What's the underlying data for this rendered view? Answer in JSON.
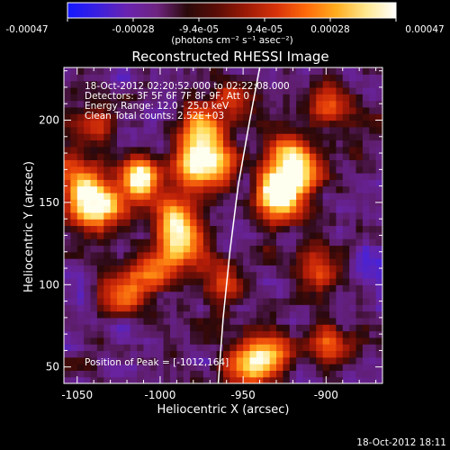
{
  "colorbar": {
    "colors": [
      "#1418ff",
      "#3a1fe0",
      "#6a23b0",
      "#6e2480",
      "#2a0a0a",
      "#5a0d06",
      "#9c1a06",
      "#d8330a",
      "#ff6a0a",
      "#ffad1e",
      "#ffe890",
      "#ffffff"
    ],
    "tick_labels": [
      "-0.00047",
      "-0.00028",
      "-9.4e-05",
      "9.4e-05",
      "0.00028",
      "0.00047"
    ],
    "unit_label": "(photons cm⁻² s⁻¹ asec⁻²)"
  },
  "chart_data": {
    "type": "heatmap",
    "title": "Reconstructed RHESSI Image",
    "xlabel": "Heliocentric X (arcsec)",
    "ylabel": "Heliocentric Y (arcsec)",
    "xlim": [
      -1058,
      -866
    ],
    "ylim": [
      40,
      232
    ],
    "x_ticks": [
      -1050,
      -1000,
      -950,
      -900
    ],
    "y_ticks": [
      50,
      100,
      150,
      200
    ],
    "info_lines": [
      "18-Oct-2012 02:20:52.000 to 02:22:08.000",
      "Detectors: 3F 5F 6F 7F 8F 9F, Att 0",
      "Energy Range: 12.0 - 25.0 keV",
      "Clean     Total counts: 2.52E+03"
    ],
    "peak_label": "Position of Peak = [-1012,164]",
    "peak": [
      -1012,
      164
    ],
    "limb": [
      [
        -965,
        40
      ],
      [
        -962,
        80
      ],
      [
        -958,
        120
      ],
      [
        -953,
        160
      ],
      [
        -946,
        200
      ],
      [
        -940,
        232
      ]
    ],
    "sources": [
      {
        "x": -1012,
        "y": 164,
        "amp": 1.0
      },
      {
        "x": -1035,
        "y": 148,
        "amp": 0.75
      },
      {
        "x": -1045,
        "y": 150,
        "amp": 0.6
      },
      {
        "x": -1050,
        "y": 165,
        "amp": 0.55
      },
      {
        "x": -990,
        "y": 140,
        "amp": 0.8
      },
      {
        "x": -985,
        "y": 122,
        "amp": 0.7
      },
      {
        "x": -1003,
        "y": 110,
        "amp": 0.65
      },
      {
        "x": -1022,
        "y": 95,
        "amp": 0.55
      },
      {
        "x": -980,
        "y": 170,
        "amp": 0.7
      },
      {
        "x": -975,
        "y": 185,
        "amp": 0.6
      },
      {
        "x": -966,
        "y": 172,
        "amp": 0.55
      },
      {
        "x": -975,
        "y": 200,
        "amp": 0.5
      },
      {
        "x": -930,
        "y": 160,
        "amp": 0.9
      },
      {
        "x": -915,
        "y": 168,
        "amp": 0.7
      },
      {
        "x": -922,
        "y": 182,
        "amp": 0.6
      },
      {
        "x": -925,
        "y": 148,
        "amp": 0.6
      },
      {
        "x": -898,
        "y": 210,
        "amp": 0.55
      },
      {
        "x": -946,
        "y": 52,
        "amp": 0.7
      },
      {
        "x": -935,
        "y": 58,
        "amp": 0.6
      },
      {
        "x": -898,
        "y": 65,
        "amp": 0.55
      },
      {
        "x": -905,
        "y": 110,
        "amp": 0.5
      },
      {
        "x": -955,
        "y": 212,
        "amp": 0.45
      },
      {
        "x": -1040,
        "y": 200,
        "amp": 0.4
      },
      {
        "x": -960,
        "y": 100,
        "amp": 0.4
      }
    ]
  },
  "footer": {
    "timestamp": "18-Oct-2012 18:11"
  }
}
